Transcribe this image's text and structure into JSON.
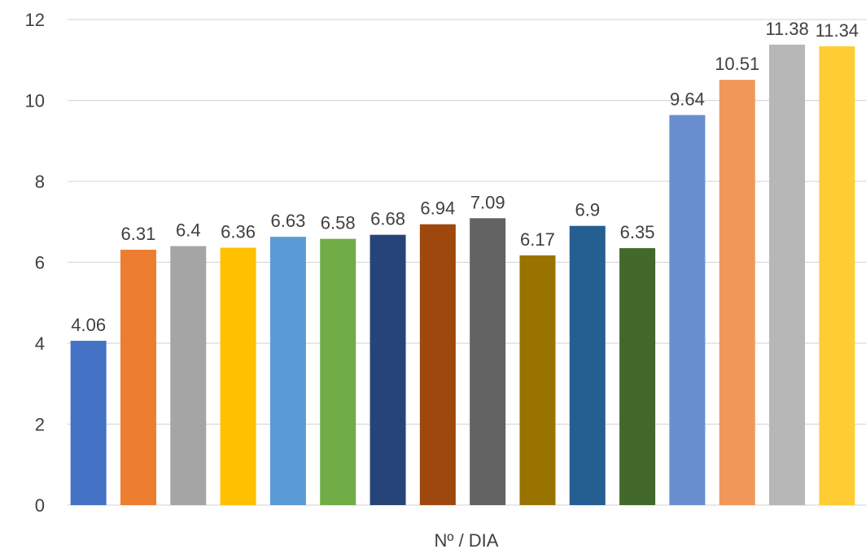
{
  "chart_data": {
    "type": "bar",
    "title": "",
    "xlabel": "Nº / DIA",
    "ylabel": "",
    "ylim": [
      0,
      12
    ],
    "yticks": [
      "0",
      "2",
      "4",
      "6",
      "8",
      "10",
      "12"
    ],
    "grid": true,
    "legend": "none",
    "values": [
      4.06,
      6.31,
      6.4,
      6.36,
      6.63,
      6.58,
      6.68,
      6.94,
      7.09,
      6.17,
      6.9,
      6.35,
      9.64,
      10.51,
      11.38,
      11.34
    ],
    "value_labels": [
      "4.06",
      "6.31",
      "6.4",
      "6.36",
      "6.63",
      "6.58",
      "6.68",
      "6.94",
      "7.09",
      "6.17",
      "6.9",
      "6.35",
      "9.64",
      "10.51",
      "11.38",
      "11.34"
    ],
    "colors": [
      "#4472c4",
      "#ed7d31",
      "#a5a5a5",
      "#ffc000",
      "#5b9bd5",
      "#70ad47",
      "#264478",
      "#9e480e",
      "#636363",
      "#997300",
      "#255e91",
      "#43682b",
      "#698ed0",
      "#f1975a",
      "#b7b7b7",
      "#ffcd33"
    ]
  }
}
